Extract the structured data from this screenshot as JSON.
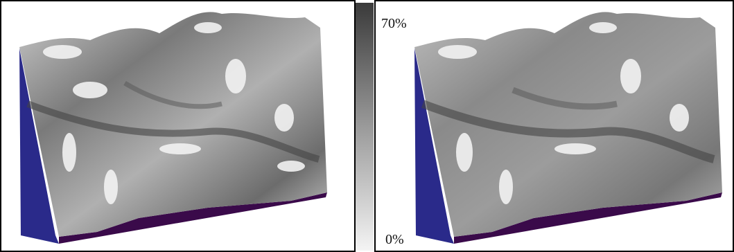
{
  "colorbar": {
    "max_label": "70%",
    "min_label": "0%"
  }
}
